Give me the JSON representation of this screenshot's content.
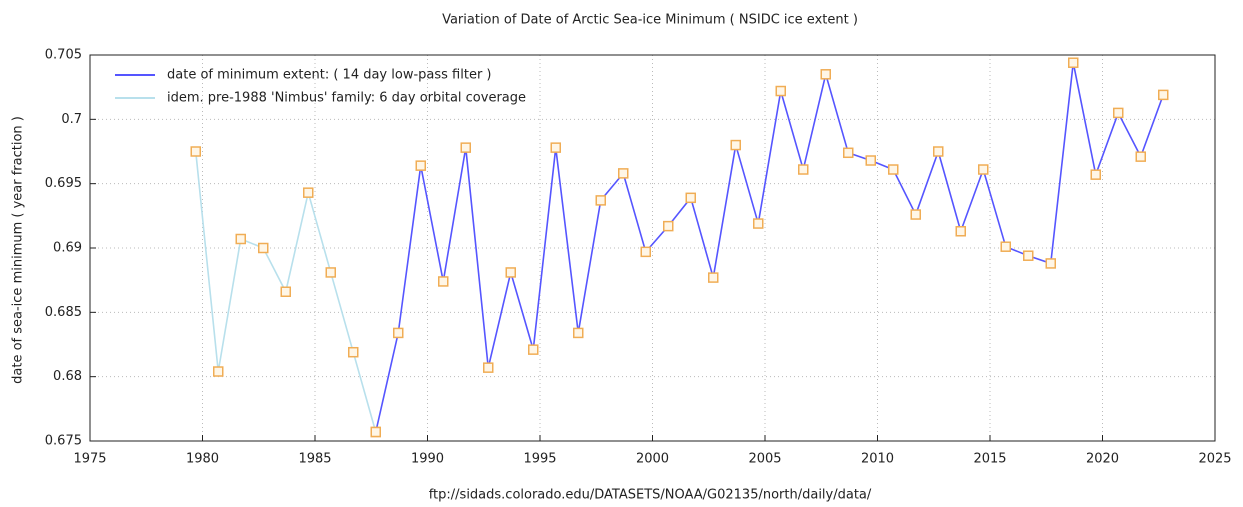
{
  "chart_data": {
    "type": "line",
    "title": "Variation of Date of Arctic Sea-ice Minimum  ( NSIDC ice extent )",
    "x_label": "ftp://sidads.colorado.edu/DATASETS/NOAA/G02135/north/daily/data/",
    "y_label": "date of sea-ice minimum ( year fraction )",
    "xlim": [
      1975,
      2025
    ],
    "xticks": [
      1975,
      1980,
      1985,
      1990,
      1995,
      2000,
      2005,
      2010,
      2015,
      2020,
      2025
    ],
    "ylim": [
      0.675,
      0.705
    ],
    "yticks": [
      0.675,
      0.68,
      0.685,
      0.69,
      0.695,
      0.7,
      0.705
    ],
    "grid": true,
    "legend": "top-left",
    "marker_color": "#f0ad55",
    "series": [
      {
        "name": "date of minimum extent:  ( 14 day low-pass filter )",
        "color": "#5555ff",
        "x": [
          1987.7,
          1988.7,
          1989.7,
          1990.7,
          1991.7,
          1992.7,
          1993.7,
          1994.7,
          1995.7,
          1996.7,
          1997.7,
          1998.7,
          1999.7,
          2000.7,
          2001.7,
          2002.7,
          2003.7,
          2004.7,
          2005.7,
          2006.7,
          2007.7,
          2008.7,
          2009.7,
          2010.7,
          2011.7,
          2012.7,
          2013.7,
          2014.7,
          2015.7,
          2016.7,
          2017.7,
          2018.7,
          2019.7,
          2020.7,
          2021.7,
          2022.7
        ],
        "values": [
          0.6757,
          0.6834,
          0.6964,
          0.6874,
          0.6978,
          0.6807,
          0.6881,
          0.6821,
          0.6978,
          0.6834,
          0.6937,
          0.6958,
          0.6897,
          0.6917,
          0.6939,
          0.6877,
          0.698,
          0.6919,
          0.7022,
          0.6961,
          0.7035,
          0.6974,
          0.6968,
          0.6961,
          0.6926,
          0.6975,
          0.6913,
          0.6961,
          0.6901,
          0.6894,
          0.6888,
          0.7044,
          0.6957,
          0.7005,
          0.6971,
          0.7019
        ]
      },
      {
        "name": "idem. pre-1988 'Nimbus' family:  6 day orbital coverage",
        "color": "#b8e0ec",
        "x": [
          1979.7,
          1980.7,
          1981.7,
          1982.7,
          1983.7,
          1984.7,
          1985.7,
          1986.7,
          1987.7
        ],
        "values": [
          0.6975,
          0.6804,
          0.6907,
          0.69,
          0.6866,
          0.6943,
          0.6881,
          0.6819,
          0.6757
        ]
      }
    ]
  }
}
